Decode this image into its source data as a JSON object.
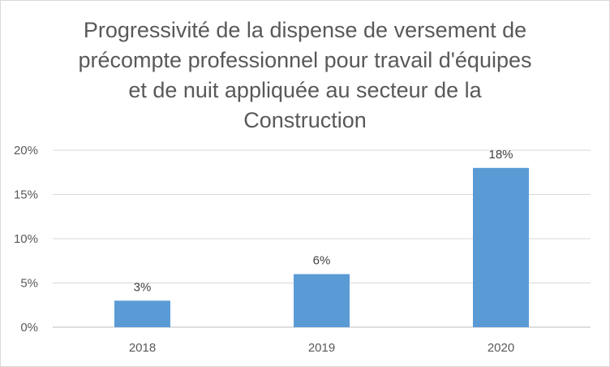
{
  "chart_data": {
    "type": "bar",
    "title_lines": [
      "Progressivité de la dispense de versement de",
      "précompte professionnel pour travail d'équipes",
      "et de nuit appliquée au secteur de la",
      "Construction"
    ],
    "categories": [
      "2018",
      "2019",
      "2020"
    ],
    "values": [
      0.03,
      0.06,
      0.18
    ],
    "data_labels": [
      "3%",
      "6%",
      "18%"
    ],
    "y_ticks": [
      0,
      0.05,
      0.1,
      0.15,
      0.2
    ],
    "y_tick_labels": [
      "0%",
      "5%",
      "10%",
      "15%",
      "20%"
    ],
    "ylim": [
      0,
      0.2
    ],
    "xlabel": "",
    "ylabel": "",
    "grid": true,
    "legend": "none",
    "bar_color": "#5b9bd5",
    "grid_color": "#d9d9d9"
  }
}
